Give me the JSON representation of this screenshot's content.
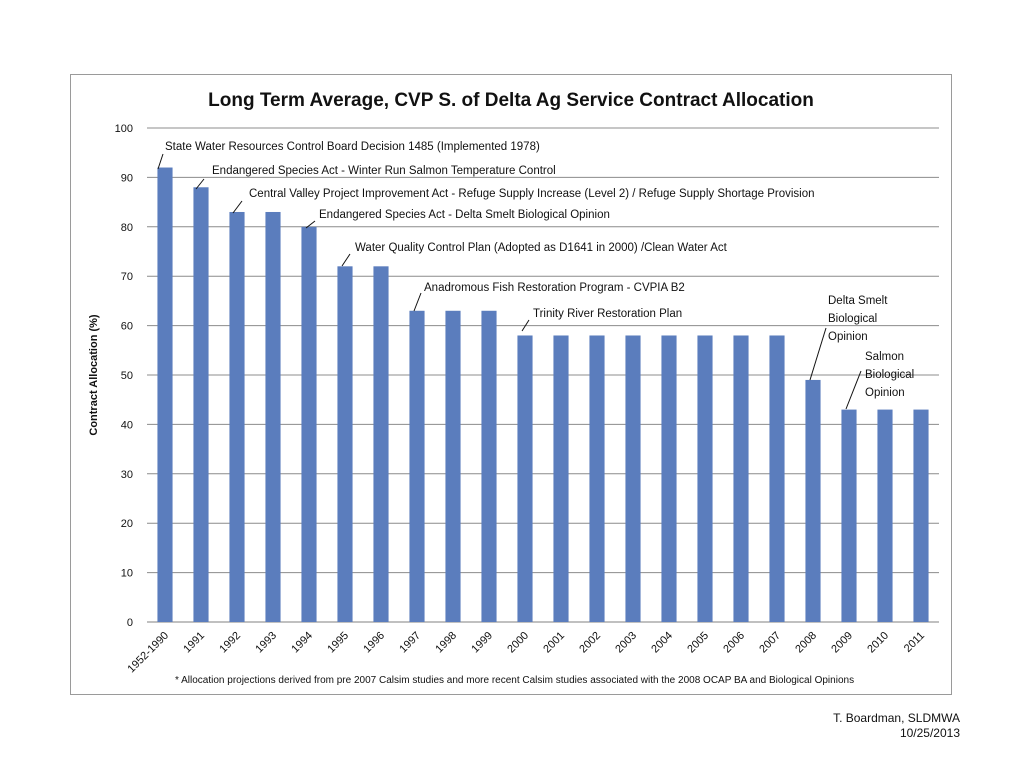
{
  "chart_data": {
    "type": "bar",
    "title": "Long Term Average, CVP S. of Delta Ag Service Contract Allocation",
    "xlabel": "",
    "ylabel": "Contract Allocation (%)",
    "ylim": [
      0,
      100
    ],
    "yticks": [
      0,
      10,
      20,
      30,
      40,
      50,
      60,
      70,
      80,
      90,
      100
    ],
    "grid": true,
    "bar_color": "#5b7dbd",
    "categories": [
      "1952-1990",
      "1991",
      "1992",
      "1993",
      "1994",
      "1995",
      "1996",
      "1997",
      "1998",
      "1999",
      "2000",
      "2001",
      "2002",
      "2003",
      "2004",
      "2005",
      "2006",
      "2007",
      "2008",
      "2009",
      "2010",
      "2011"
    ],
    "values": [
      92,
      88,
      83,
      83,
      80,
      72,
      72,
      63,
      63,
      63,
      58,
      58,
      58,
      58,
      58,
      58,
      58,
      58,
      49,
      43,
      43,
      43
    ],
    "annotations": [
      {
        "category": "1952-1990",
        "lines": [
          "State Water Resources Control Board Decision 1485 (Implemented 1978)"
        ]
      },
      {
        "category": "1991",
        "lines": [
          "Endangered Species Act - Winter Run Salmon Temperature Control"
        ]
      },
      {
        "category": "1992",
        "lines": [
          "Central Valley Project Improvement Act - Refuge Supply Increase (Level 2) / Refuge Supply Shortage Provision"
        ]
      },
      {
        "category": "1994",
        "lines": [
          "Endangered Species Act - Delta Smelt Biological Opinion"
        ]
      },
      {
        "category": "1995",
        "lines": [
          "Water Quality Control Plan (Adopted as D1641 in 2000) /Clean Water Act"
        ]
      },
      {
        "category": "1997",
        "lines": [
          "Anadromous Fish Restoration Program - CVPIA B2"
        ]
      },
      {
        "category": "2000",
        "lines": [
          "Trinity River Restoration Plan"
        ]
      },
      {
        "category": "2008",
        "lines": [
          "Delta Smelt",
          "Biological",
          "Opinion"
        ]
      },
      {
        "category": "2009",
        "lines": [
          "Salmon",
          "Biological",
          "Opinion"
        ]
      }
    ],
    "footnote": "* Allocation projections derived from  pre 2007 Calsim studies and more recent Calsim studies associated with the 2008 OCAP BA and Biological Opinions"
  },
  "credit": {
    "author": "T. Boardman, SLDMWA",
    "date": "10/25/2013"
  }
}
